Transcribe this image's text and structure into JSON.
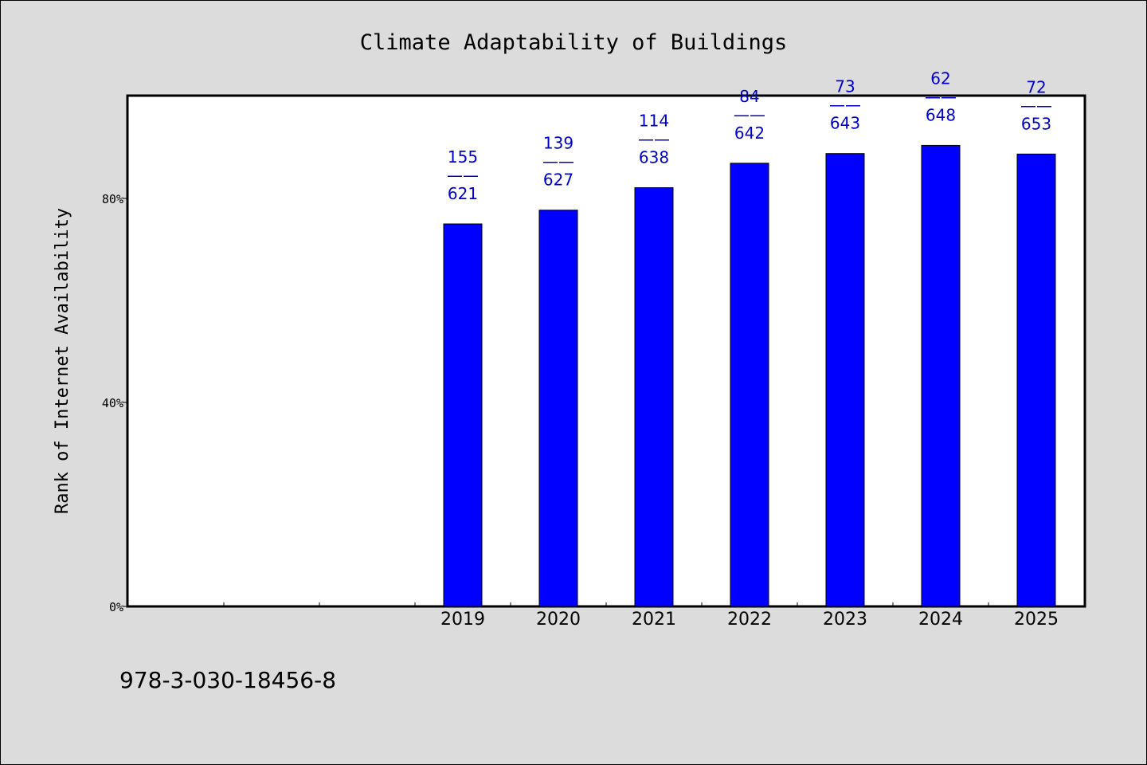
{
  "chart_data": {
    "type": "bar",
    "title": "Climate Adaptability of Buildings",
    "ylabel": "Rank of Internet Availability",
    "xlabel": "",
    "yaxis": {
      "min": 0,
      "max": 100,
      "ticks": [
        0,
        40,
        80
      ],
      "tick_labels": [
        "0%",
        "40%",
        "80%"
      ]
    },
    "x_slots": 10,
    "categories": [
      "2019",
      "2020",
      "2021",
      "2022",
      "2023",
      "2024",
      "2025"
    ],
    "category_slots": [
      3,
      4,
      5,
      6,
      7,
      8,
      9
    ],
    "values": [
      75.0,
      77.7,
      82.1,
      86.9,
      88.8,
      90.4,
      88.7
    ],
    "data_labels": [
      {
        "top": "155",
        "sep": "——",
        "bottom": "621"
      },
      {
        "top": "139",
        "sep": "——",
        "bottom": "627"
      },
      {
        "top": "114",
        "sep": "——",
        "bottom": "638"
      },
      {
        "top": "84",
        "sep": "——",
        "bottom": "642"
      },
      {
        "top": "73",
        "sep": "——",
        "bottom": "643"
      },
      {
        "top": "62",
        "sep": "——",
        "bottom": "648"
      },
      {
        "top": "72",
        "sep": "——",
        "bottom": "653"
      }
    ],
    "bar_color": "#0000ff",
    "label_color": "#0000cc",
    "grid": false,
    "legend": "none"
  },
  "footer": {
    "isbn": "978-3-030-18456-8"
  }
}
